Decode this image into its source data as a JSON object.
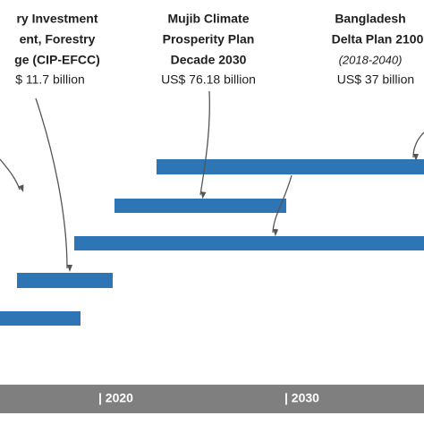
{
  "plans": [
    {
      "lines": [
        "ry Investment",
        "ent, Forestry",
        "ge (CIP-EFCC)"
      ],
      "amount": "$ 11.7 billion"
    },
    {
      "lines": [
        "Mujib Climate",
        "Prosperity Plan",
        "Decade 2030"
      ],
      "amount": "US$ 76.18 billion"
    },
    {
      "lines": [
        "Bangladesh",
        "Delta Plan 2100"
      ],
      "period": "(2018-2040)",
      "amount": "US$ 37 billion"
    }
  ],
  "axis": {
    "labels": [
      "| 2020",
      "| 2030"
    ]
  }
}
